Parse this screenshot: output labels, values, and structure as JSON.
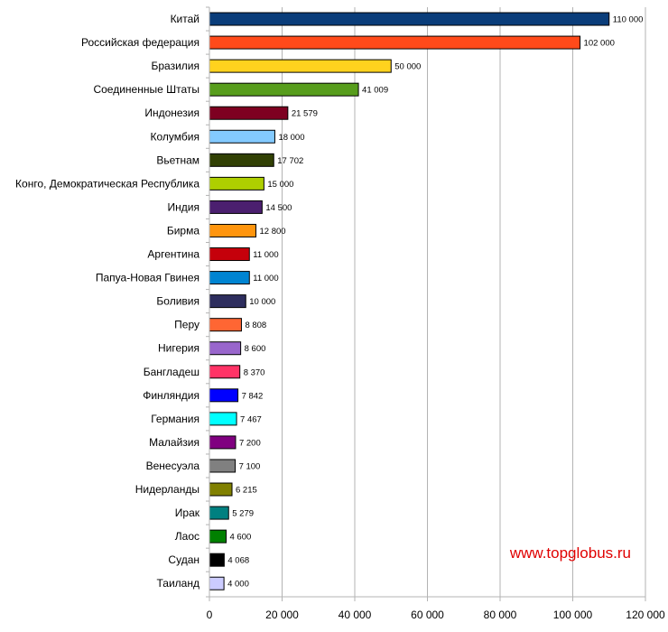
{
  "chart_data": {
    "type": "bar",
    "orientation": "horizontal",
    "categories": [
      "Китай",
      "Российская федерация",
      "Бразилия",
      "Соединенные Штаты",
      "Индонезия",
      "Колумбия",
      "Вьетнам",
      "Конго, Демократическая Республика",
      "Индия",
      "Бирма",
      "Аргентина",
      "Папуа-Новая Гвинея",
      "Боливия",
      "Перу",
      "Нигерия",
      "Бангладеш",
      "Финляндия",
      "Германия",
      "Малайзия",
      "Венесуэла",
      "Нидерланды",
      "Ирак",
      "Лаос",
      "Судан",
      "Таиланд"
    ],
    "values": [
      110000,
      102000,
      50000,
      41009,
      21579,
      18000,
      17702,
      15000,
      14500,
      12800,
      11000,
      11000,
      10000,
      8808,
      8600,
      8370,
      7842,
      7467,
      7200,
      7100,
      6215,
      5279,
      4600,
      4068,
      4000
    ],
    "value_labels": [
      "110 000",
      "102 000",
      "50 000",
      "41 009",
      "21 579",
      "18 000",
      "17 702",
      "15 000",
      "14 500",
      "12 800",
      "11 000",
      "11 000",
      "10 000",
      "8 808",
      "8 600",
      "8 370",
      "7 842",
      "7 467",
      "7 200",
      "7 100",
      "6 215",
      "5 279",
      "4 600",
      "4 068",
      "4 000"
    ],
    "colors": [
      "#0a3d7a",
      "#ff4a1a",
      "#ffd21e",
      "#579d1c",
      "#7e0021",
      "#83caff",
      "#314004",
      "#aecf00",
      "#4b1f6f",
      "#ff950e",
      "#c5000b",
      "#0084d1",
      "#2e2e5e",
      "#ff6633",
      "#9966cc",
      "#ff3366",
      "#0000ff",
      "#00ffff",
      "#800080",
      "#808080",
      "#808000",
      "#008080",
      "#008000",
      "#000000",
      "#ccccff"
    ],
    "xlim": [
      0,
      120000
    ],
    "x_ticks": [
      0,
      20000,
      40000,
      60000,
      80000,
      100000,
      120000
    ],
    "x_tick_labels": [
      "0",
      "20 000",
      "40 000",
      "60 000",
      "80 000",
      "100 000",
      "120 000"
    ],
    "grid": true,
    "legend": "none",
    "title": "",
    "xlabel": "",
    "ylabel": ""
  },
  "watermark": "www.topglobus.ru"
}
